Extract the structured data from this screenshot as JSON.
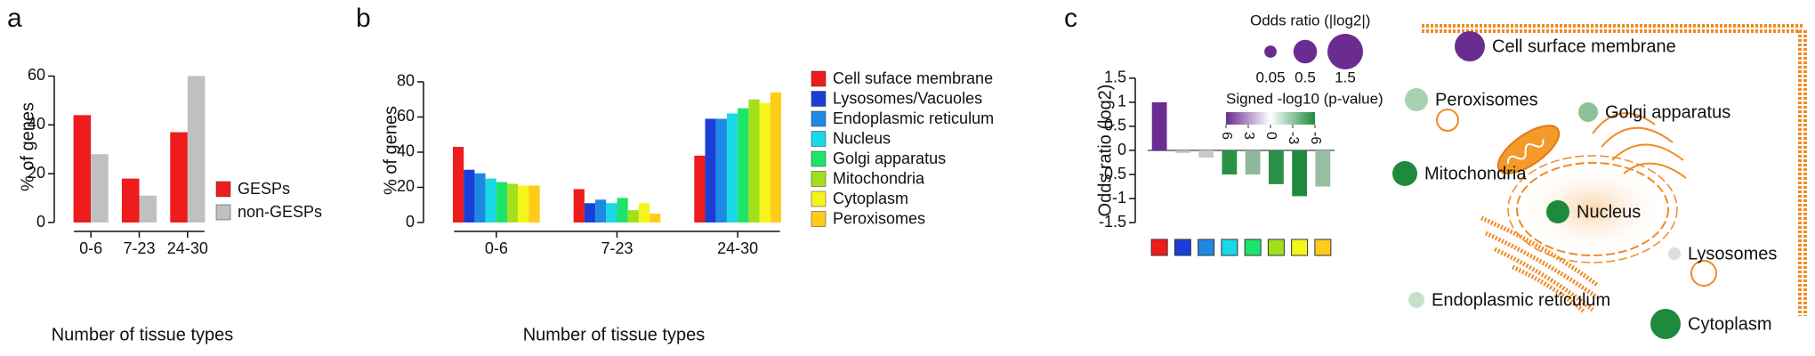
{
  "chart_data": [
    {
      "type": "bar",
      "panel_label": "a",
      "y_label": "% of genes",
      "x_label": "Number of tissue types",
      "categories": [
        "0-6",
        "7-23",
        "24-30"
      ],
      "series": [
        {
          "name": "GESPs",
          "color": "#ee1c1c",
          "values": [
            44,
            18,
            37
          ]
        },
        {
          "name": "non-GESPs",
          "color": "#c0c0c0",
          "values": [
            28,
            11,
            60
          ]
        }
      ],
      "ylim": [
        0,
        62
      ],
      "yticks": [
        0,
        20,
        40,
        60
      ],
      "legend": "lower right"
    },
    {
      "type": "bar",
      "panel_label": "b",
      "y_label": "% of genes",
      "x_label": "Number of tissue types",
      "categories": [
        "0-6",
        "7-23",
        "24-30"
      ],
      "series": [
        {
          "name": "Cell suface membrane",
          "color": "#ee1c1c",
          "values": [
            43,
            19,
            38
          ]
        },
        {
          "name": "Lysosomes/Vacuoles",
          "color": "#1a3ed8",
          "values": [
            30,
            11,
            59
          ]
        },
        {
          "name": "Endoplasmic reticulum",
          "color": "#1e88e5",
          "values": [
            28,
            13,
            59
          ]
        },
        {
          "name": "Nucleus",
          "color": "#1ad8e6",
          "values": [
            25,
            11,
            62
          ]
        },
        {
          "name": "Golgi apparatus",
          "color": "#1de46a",
          "values": [
            23,
            14,
            65
          ]
        },
        {
          "name": "Mitochondria",
          "color": "#a3e01b",
          "values": [
            22,
            7,
            70
          ]
        },
        {
          "name": "Cytoplasm",
          "color": "#f5f51a",
          "values": [
            21,
            11,
            68
          ]
        },
        {
          "name": "Peroxisomes",
          "color": "#ffcc1a",
          "values": [
            21,
            5,
            74
          ]
        }
      ],
      "ylim": [
        0,
        82
      ],
      "yticks": [
        0,
        20,
        40,
        60,
        80
      ],
      "legend": "right"
    },
    {
      "type": "bar",
      "panel_label": "c",
      "y_label": "Odds ratio (log2)",
      "categories": [
        null,
        null,
        null,
        null,
        null,
        null,
        null,
        null
      ],
      "category_colors": [
        "#ee1c1c",
        "#1a3ed8",
        "#1e88e5",
        "#1ad8e6",
        "#1de46a",
        "#a3e01b",
        "#f5f51a",
        "#ffcc1a"
      ],
      "values": [
        1.0,
        -0.05,
        -0.15,
        -0.5,
        -0.5,
        -0.7,
        -0.95,
        -0.75
      ],
      "colors": [
        "#6a2c91",
        "#bfbfbf",
        "#c9c9c9",
        "#2a9046",
        "#8fb89a",
        "#2a9046",
        "#1f8a3e",
        "#98bea2"
      ],
      "ylim": [
        -1.7,
        1.7
      ],
      "yticks": [
        -1.5,
        -1,
        -0.5,
        0,
        0.5,
        1,
        1.5
      ],
      "size_legend": {
        "title": "Odds ratio (|log2|)",
        "values": [
          0.05,
          0.5,
          1.5
        ],
        "color": "#6a2c91"
      },
      "color_legend": {
        "title": "Signed -log10 (p-value)",
        "ticks": [
          6,
          3,
          0,
          -3,
          -6
        ],
        "colors": [
          "#6a2c91",
          "#ffffff",
          "#1f8a3e"
        ]
      }
    }
  ],
  "diagram": {
    "nodes": [
      {
        "label": "Cell surface membrane",
        "color": "#6a2c91"
      },
      {
        "label": "Peroxisomes",
        "color": "#a9d3b0"
      },
      {
        "label": "Golgi apparatus",
        "color": "#8cc29a"
      },
      {
        "label": "Mitochondria",
        "color": "#1f8a3e"
      },
      {
        "label": "Nucleus",
        "color": "#1f8a3e"
      },
      {
        "label": "Lysosomes",
        "color": "#dddddd"
      },
      {
        "label": "Endoplasmic reticulum",
        "color": "#c6e0c9"
      },
      {
        "label": "Cytoplasm",
        "color": "#1f8a3e"
      }
    ]
  }
}
